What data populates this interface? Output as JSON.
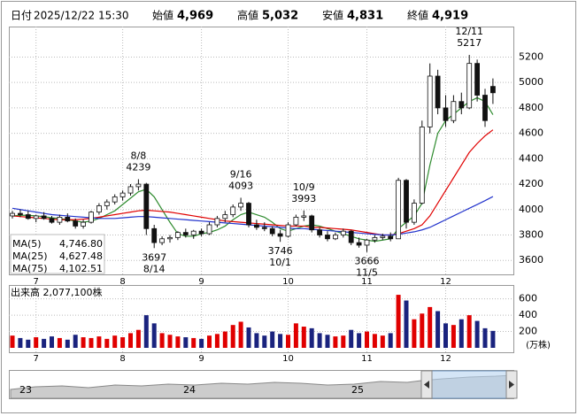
{
  "header": {
    "date_label": "日付",
    "datetime": "2025/12/22 15:30",
    "fields": [
      {
        "label": "始値",
        "value": "4,969",
        "color": "#000000"
      },
      {
        "label": "高値",
        "value": "5,032",
        "color": "#e00000"
      },
      {
        "label": "安値",
        "value": "4,831",
        "color": "#138a13"
      },
      {
        "label": "終値",
        "value": "4,919",
        "color": "#000000"
      }
    ]
  },
  "chart_data": [
    {
      "type": "candlestick",
      "categories": [
        null,
        null,
        null,
        "7",
        null,
        null,
        null,
        null,
        null,
        null,
        null,
        null,
        null,
        null,
        "8",
        null,
        null,
        null,
        null,
        null,
        null,
        null,
        null,
        null,
        "9",
        null,
        null,
        null,
        null,
        null,
        null,
        null,
        null,
        null,
        null,
        "10",
        null,
        null,
        null,
        null,
        null,
        null,
        null,
        null,
        null,
        "11",
        null,
        null,
        null,
        null,
        null,
        null,
        null,
        null,
        null,
        "12",
        null,
        null,
        null,
        null,
        null,
        null
      ],
      "open": [
        3950,
        3970,
        3960,
        3930,
        3950,
        3930,
        3900,
        3940,
        3910,
        3870,
        3900,
        3980,
        4030,
        4060,
        4100,
        4130,
        4180,
        4200,
        3850,
        3740,
        3770,
        3780,
        3820,
        3800,
        3830,
        3810,
        3880,
        3930,
        3960,
        4020,
        4050,
        3880,
        3860,
        3850,
        3810,
        3790,
        3880,
        3940,
        3950,
        3840,
        3800,
        3770,
        3800,
        3830,
        3740,
        3720,
        3760,
        3780,
        3790,
        3770,
        4230,
        3900,
        4050,
        4650,
        5050,
        4800,
        4700,
        4850,
        4800,
        5150,
        4900,
        4969
      ],
      "high": [
        3990,
        4000,
        3990,
        3960,
        3980,
        3950,
        3960,
        3970,
        3930,
        3920,
        3990,
        4050,
        4080,
        4120,
        4150,
        4200,
        4239,
        4210,
        3880,
        3790,
        3800,
        3830,
        3850,
        3840,
        3850,
        3900,
        3950,
        3990,
        4040,
        4093,
        4060,
        3920,
        3900,
        3870,
        3840,
        3900,
        3960,
        3993,
        3960,
        3860,
        3830,
        3820,
        3850,
        3840,
        3780,
        3770,
        3800,
        3810,
        3820,
        4250,
        4240,
        4080,
        4700,
        5150,
        5100,
        4900,
        4900,
        4920,
        5217,
        5180,
        4950,
        5032
      ],
      "low": [
        3930,
        3940,
        3920,
        3900,
        3920,
        3890,
        3880,
        3900,
        3850,
        3850,
        3890,
        3960,
        4000,
        4040,
        4070,
        4110,
        4150,
        3800,
        3697,
        3720,
        3740,
        3760,
        3780,
        3770,
        3790,
        3800,
        3860,
        3900,
        3940,
        3990,
        3860,
        3840,
        3830,
        3790,
        3746,
        3780,
        3870,
        3910,
        3820,
        3780,
        3750,
        3760,
        3780,
        3720,
        3700,
        3666,
        3740,
        3760,
        3750,
        3770,
        3850,
        3880,
        4040,
        4600,
        4750,
        4650,
        4680,
        4750,
        4790,
        4850,
        4650,
        4831
      ],
      "close": [
        3970,
        3960,
        3930,
        3950,
        3930,
        3900,
        3940,
        3910,
        3870,
        3900,
        3980,
        4030,
        4060,
        4100,
        4130,
        4180,
        4200,
        3850,
        3740,
        3770,
        3780,
        3820,
        3800,
        3830,
        3810,
        3880,
        3930,
        3960,
        4020,
        4050,
        3880,
        3860,
        3850,
        3810,
        3790,
        3880,
        3940,
        3950,
        3840,
        3800,
        3770,
        3800,
        3830,
        3740,
        3720,
        3760,
        3780,
        3790,
        3770,
        4230,
        3900,
        4050,
        4650,
        5050,
        4800,
        4700,
        4850,
        4800,
        5150,
        4900,
        4700,
        4919
      ],
      "series": [
        {
          "name": "MA(5)",
          "legend_value": "4,746.80",
          "color": "#2e8b2e",
          "values": [
            3950,
            3955,
            3955,
            3950,
            3945,
            3935,
            3930,
            3920,
            3910,
            3900,
            3910,
            3930,
            3960,
            3990,
            4040,
            4090,
            4140,
            4160,
            4100,
            4000,
            3900,
            3810,
            3790,
            3790,
            3810,
            3820,
            3840,
            3870,
            3920,
            3960,
            3980,
            3960,
            3940,
            3900,
            3850,
            3830,
            3850,
            3870,
            3880,
            3870,
            3850,
            3830,
            3810,
            3790,
            3770,
            3760,
            3750,
            3760,
            3770,
            3850,
            3900,
            3950,
            4050,
            4350,
            4600,
            4700,
            4750,
            4800,
            4850,
            4880,
            4850,
            4746.8
          ]
        },
        {
          "name": "MA(25)",
          "legend_value": "4,627.48",
          "color": "#e00000",
          "values": [
            3950,
            3945,
            3940,
            3935,
            3930,
            3925,
            3920,
            3920,
            3920,
            3925,
            3930,
            3940,
            3950,
            3960,
            3970,
            3980,
            3990,
            3995,
            3990,
            3985,
            3980,
            3970,
            3960,
            3950,
            3940,
            3930,
            3920,
            3910,
            3905,
            3900,
            3895,
            3890,
            3885,
            3880,
            3875,
            3870,
            3870,
            3870,
            3860,
            3860,
            3855,
            3850,
            3845,
            3840,
            3830,
            3820,
            3810,
            3800,
            3800,
            3810,
            3830,
            3850,
            3880,
            3950,
            4050,
            4150,
            4250,
            4350,
            4450,
            4520,
            4580,
            4627.48
          ]
        },
        {
          "name": "MA(75)",
          "legend_value": "4,102.51",
          "color": "#2233cc",
          "values": [
            4010,
            4000,
            3990,
            3980,
            3970,
            3960,
            3955,
            3950,
            3945,
            3940,
            3935,
            3930,
            3930,
            3930,
            3935,
            3940,
            3945,
            3945,
            3940,
            3935,
            3930,
            3925,
            3920,
            3915,
            3910,
            3905,
            3900,
            3895,
            3890,
            3885,
            3880,
            3875,
            3870,
            3865,
            3860,
            3855,
            3850,
            3850,
            3845,
            3840,
            3835,
            3830,
            3825,
            3820,
            3815,
            3810,
            3805,
            3800,
            3800,
            3805,
            3815,
            3825,
            3840,
            3860,
            3890,
            3920,
            3950,
            3980,
            4010,
            4040,
            4070,
            4102.51
          ]
        }
      ],
      "annotations": [
        {
          "date": "8/8",
          "value": 4239,
          "side": "high"
        },
        {
          "date": "8/14",
          "value": 3697,
          "side": "low"
        },
        {
          "date": "9/16",
          "value": 4093,
          "side": "high"
        },
        {
          "date": "10/1",
          "value": 3746,
          "side": "low"
        },
        {
          "date": "10/9",
          "value": 3993,
          "side": "high"
        },
        {
          "date": "11/5",
          "value": 3666,
          "side": "low"
        },
        {
          "date": "12/11",
          "value": 5217,
          "side": "high"
        }
      ],
      "up_color": "#ffffff",
      "down_color": "#111111",
      "ylim": [
        3490,
        5440
      ],
      "yticks": [
        3600,
        3800,
        4000,
        4200,
        4400,
        4600,
        4800,
        5000,
        5200
      ],
      "grid": true
    },
    {
      "type": "bar",
      "title": "出来高 2,077,100株",
      "unit": "(万株)",
      "categories": [
        null,
        null,
        null,
        "7",
        null,
        null,
        null,
        null,
        null,
        null,
        null,
        null,
        null,
        null,
        "8",
        null,
        null,
        null,
        null,
        null,
        null,
        null,
        null,
        null,
        "9",
        null,
        null,
        null,
        null,
        null,
        null,
        null,
        null,
        null,
        null,
        "10",
        null,
        null,
        null,
        null,
        null,
        null,
        null,
        null,
        null,
        "11",
        null,
        null,
        null,
        null,
        null,
        null,
        null,
        null,
        null,
        "12",
        null,
        null,
        null,
        null,
        null,
        null
      ],
      "values": [
        150,
        120,
        100,
        130,
        110,
        140,
        120,
        100,
        160,
        130,
        120,
        140,
        110,
        150,
        130,
        180,
        220,
        400,
        300,
        180,
        160,
        140,
        130,
        120,
        110,
        150,
        170,
        200,
        280,
        320,
        250,
        180,
        150,
        200,
        170,
        160,
        300,
        260,
        240,
        180,
        160,
        140,
        150,
        220,
        180,
        200,
        170,
        150,
        180,
        650,
        580,
        350,
        420,
        500,
        450,
        300,
        280,
        350,
        400,
        330,
        240,
        207.71
      ],
      "up_color": "#e00000",
      "down_color": "#1a237e",
      "ylim": [
        0,
        770
      ],
      "yticks": [
        200,
        400,
        600
      ],
      "grid": true
    }
  ],
  "navigator": {
    "labels": [
      "23",
      "24",
      "25"
    ]
  }
}
